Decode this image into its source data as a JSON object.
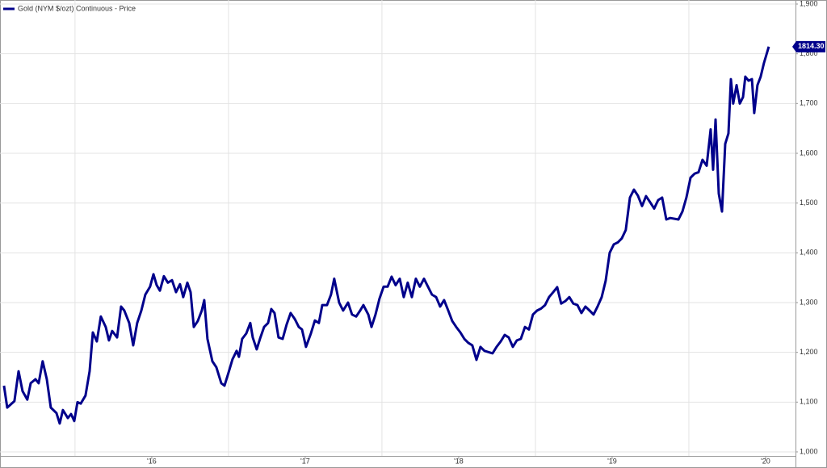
{
  "chart_data": {
    "type": "line",
    "legend_position": "top-left",
    "xlim": [
      2015.011,
      2020.195
    ],
    "ylim": [
      1000,
      1900
    ],
    "xticks": [
      {
        "value": 2016,
        "label": "'16"
      },
      {
        "value": 2017,
        "label": "'17"
      },
      {
        "value": 2018,
        "label": "'18"
      },
      {
        "value": 2019,
        "label": "'19"
      },
      {
        "value": 2020,
        "label": "'20"
      }
    ],
    "xgrid": [
      2015.5,
      2016.5,
      2017.5,
      2018.5,
      2019.5
    ],
    "yticks": [
      {
        "value": 1000,
        "label": "1,000"
      },
      {
        "value": 1100,
        "label": "1,100"
      },
      {
        "value": 1200,
        "label": "1,200"
      },
      {
        "value": 1300,
        "label": "1,300"
      },
      {
        "value": 1400,
        "label": "1,400"
      },
      {
        "value": 1500,
        "label": "1,500"
      },
      {
        "value": 1600,
        "label": "1,600"
      },
      {
        "value": 1700,
        "label": "1,700"
      },
      {
        "value": 1800,
        "label": "1,800"
      },
      {
        "value": 1900,
        "label": "1,900"
      }
    ],
    "grid": true,
    "annotations": [
      {
        "x": 2020.021,
        "y": 1814.3,
        "label": "1814.30",
        "color": "#00008b"
      }
    ],
    "series": [
      {
        "name": "Gold (NYM $/ozt) Continuous - Price",
        "color": "#00008b",
        "x": [
          2015.037,
          2015.058,
          2015.105,
          2015.132,
          2015.158,
          2015.189,
          2015.211,
          2015.242,
          2015.263,
          2015.289,
          2015.316,
          2015.342,
          2015.379,
          2015.4,
          2015.421,
          2015.453,
          2015.474,
          2015.495,
          2015.516,
          2015.537,
          2015.568,
          2015.595,
          2015.616,
          2015.642,
          2015.668,
          2015.7,
          2015.721,
          2015.742,
          2015.774,
          2015.8,
          2015.821,
          2015.853,
          2015.879,
          2015.905,
          2015.932,
          2015.958,
          2015.989,
          2016.011,
          2016.032,
          2016.053,
          2016.079,
          2016.105,
          2016.132,
          2016.158,
          2016.184,
          2016.205,
          2016.232,
          2016.253,
          2016.274,
          2016.3,
          2016.326,
          2016.342,
          2016.363,
          2016.395,
          2016.421,
          2016.453,
          2016.474,
          2016.5,
          2016.526,
          2016.553,
          2016.568,
          2016.589,
          2016.616,
          2016.642,
          2016.658,
          2016.684,
          2016.705,
          2016.732,
          2016.758,
          2016.779,
          2016.8,
          2016.826,
          2016.853,
          2016.879,
          2016.905,
          2016.932,
          2016.958,
          2016.979,
          2017.005,
          2017.037,
          2017.063,
          2017.089,
          2017.111,
          2017.142,
          2017.168,
          2017.189,
          2017.221,
          2017.247,
          2017.279,
          2017.305,
          2017.332,
          2017.358,
          2017.379,
          2017.411,
          2017.432,
          2017.458,
          2017.484,
          2017.511,
          2017.537,
          2017.563,
          2017.589,
          2017.616,
          2017.642,
          2017.668,
          2017.695,
          2017.721,
          2017.747,
          2017.774,
          2017.8,
          2017.826,
          2017.853,
          2017.879,
          2017.905,
          2017.932,
          2017.958,
          2017.984,
          2018.011,
          2018.037,
          2018.063,
          2018.089,
          2018.116,
          2018.142,
          2018.168,
          2018.221,
          2018.247,
          2018.274,
          2018.3,
          2018.326,
          2018.353,
          2018.379,
          2018.405,
          2018.432,
          2018.458,
          2018.484,
          2018.511,
          2018.537,
          2018.563,
          2018.589,
          2018.616,
          2018.642,
          2018.668,
          2018.695,
          2018.721,
          2018.747,
          2018.774,
          2018.8,
          2018.826,
          2018.853,
          2018.879,
          2018.905,
          2018.932,
          2018.958,
          2018.984,
          2019.011,
          2019.037,
          2019.063,
          2019.089,
          2019.116,
          2019.142,
          2019.168,
          2019.195,
          2019.221,
          2019.247,
          2019.274,
          2019.3,
          2019.326,
          2019.353,
          2019.379,
          2019.432,
          2019.458,
          2019.484,
          2019.511,
          2019.537,
          2019.563,
          2019.589,
          2019.616,
          2019.642,
          2019.658,
          2019.674,
          2019.695,
          2019.716,
          2019.737,
          2019.758,
          2019.774,
          2019.789,
          2019.811,
          2019.832,
          2019.853,
          2019.868,
          2019.889,
          2019.911,
          2019.926,
          2019.947,
          2019.968,
          2019.989,
          2020.021
        ],
        "values": [
          1133,
          1089,
          1102,
          1162,
          1122,
          1105,
          1138,
          1146,
          1138,
          1182,
          1146,
          1089,
          1078,
          1057,
          1084,
          1068,
          1076,
          1062,
          1100,
          1097,
          1113,
          1162,
          1240,
          1222,
          1272,
          1251,
          1224,
          1243,
          1230,
          1292,
          1284,
          1259,
          1214,
          1259,
          1284,
          1316,
          1332,
          1357,
          1335,
          1324,
          1353,
          1340,
          1345,
          1321,
          1337,
          1311,
          1340,
          1321,
          1251,
          1263,
          1284,
          1305,
          1227,
          1182,
          1170,
          1138,
          1133,
          1159,
          1186,
          1203,
          1191,
          1227,
          1238,
          1259,
          1230,
          1206,
          1227,
          1251,
          1259,
          1287,
          1279,
          1230,
          1227,
          1256,
          1279,
          1267,
          1251,
          1246,
          1211,
          1238,
          1264,
          1259,
          1295,
          1295,
          1316,
          1348,
          1300,
          1284,
          1300,
          1276,
          1272,
          1284,
          1295,
          1276,
          1251,
          1276,
          1308,
          1332,
          1332,
          1352,
          1335,
          1348,
          1311,
          1340,
          1311,
          1348,
          1332,
          1348,
          1332,
          1316,
          1311,
          1292,
          1305,
          1284,
          1263,
          1251,
          1240,
          1227,
          1219,
          1214,
          1185,
          1211,
          1203,
          1198,
          1211,
          1222,
          1235,
          1230,
          1211,
          1224,
          1227,
          1251,
          1246,
          1276,
          1284,
          1288,
          1295,
          1311,
          1321,
          1331,
          1298,
          1303,
          1311,
          1298,
          1295,
          1279,
          1292,
          1284,
          1276,
          1292,
          1311,
          1344,
          1400,
          1417,
          1421,
          1429,
          1446,
          1511,
          1527,
          1515,
          1494,
          1514,
          1502,
          1489,
          1506,
          1511,
          1467,
          1470,
          1467,
          1483,
          1511,
          1551,
          1559,
          1562,
          1587,
          1575,
          1648,
          1567,
          1668,
          1519,
          1483,
          1619,
          1640,
          1749,
          1700,
          1737,
          1700,
          1713,
          1754,
          1746,
          1749,
          1681,
          1737,
          1754,
          1781,
          1814.3
        ]
      }
    ]
  }
}
